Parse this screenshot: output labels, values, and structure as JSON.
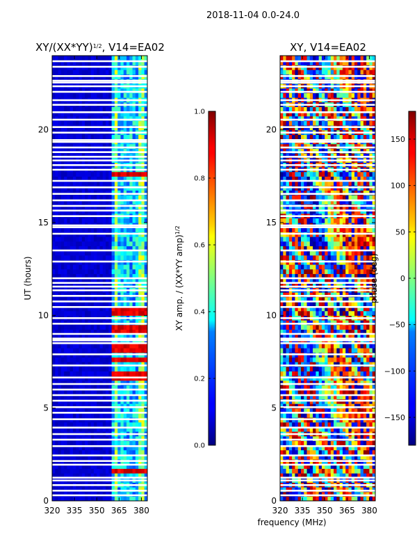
{
  "figure_title": "2018-11-04 0.0-24.0",
  "shared_xlabel": "frequency (MHz)",
  "chart_data": [
    {
      "type": "heatmap",
      "title": "XY/(XX*YY)",
      "title_sup": "1/2",
      "title_suffix": ", V14=EA02",
      "xlabel": "",
      "ylabel": "UT (hours)",
      "xlim": [
        320,
        384
      ],
      "ylim": [
        0,
        24
      ],
      "xticks": [
        320,
        335,
        350,
        365,
        380
      ],
      "yticks": [
        0,
        5,
        10,
        15,
        20
      ],
      "colorbar": {
        "label": "XY amp. / (XX*YY amp)",
        "label_sup": "1/2",
        "range": [
          0.0,
          1.0
        ],
        "ticks": [
          "0.0",
          "0.2",
          "0.4",
          "0.6",
          "0.8",
          "1.0"
        ],
        "colormap": "jet"
      },
      "features": {
        "low_band_max_mhz": 361,
        "low_band_value": 0.05,
        "rfi_columns_mhz": [
          363,
          364,
          368,
          372,
          376,
          379,
          381
        ],
        "high_value_hours": [
          1.6,
          6.8,
          7.6,
          8.2,
          9.2,
          10.2,
          17.6
        ],
        "high_value": 0.85
      }
    },
    {
      "type": "heatmap",
      "title": "XY, V14=EA02",
      "xlabel": "frequency (MHz)",
      "ylabel": "",
      "xlim": [
        320,
        384
      ],
      "ylim": [
        0,
        24
      ],
      "xticks": [
        320,
        335,
        350,
        365,
        380
      ],
      "yticks": [
        0,
        5,
        10,
        15,
        20
      ],
      "colorbar": {
        "label": "phase (deg)",
        "range": [
          -180,
          180
        ],
        "ticks": [
          "−150",
          "−100",
          "−50",
          "0",
          "50",
          "100",
          "150"
        ],
        "tick_values": [
          -150,
          -100,
          -50,
          0,
          50,
          100,
          150
        ],
        "colormap": "jet"
      }
    }
  ],
  "flagged_hours": [
    0.3,
    0.55,
    0.85,
    1.1,
    1.25,
    1.95,
    2.15,
    2.45,
    2.95,
    3.3,
    3.6,
    3.95,
    4.4,
    4.75,
    5.05,
    5.4,
    5.7,
    6.0,
    6.3,
    6.65,
    7.3,
    7.9,
    8.5,
    8.65,
    8.75,
    9.0,
    9.55,
    9.85,
    10.45,
    10.75,
    11.05,
    11.35,
    11.55,
    11.75,
    12.0,
    12.9,
    13.5,
    14.4,
    14.75,
    14.85,
    15.35,
    15.65,
    15.9,
    16.2,
    16.55,
    16.9,
    17.25,
    17.85,
    18.1,
    18.35,
    18.55,
    18.8,
    19.05,
    19.35,
    19.45,
    19.85,
    20.15,
    20.55,
    20.95,
    21.35,
    21.6,
    22.05,
    22.35,
    22.55,
    22.65,
    22.9,
    23.4,
    23.7
  ]
}
